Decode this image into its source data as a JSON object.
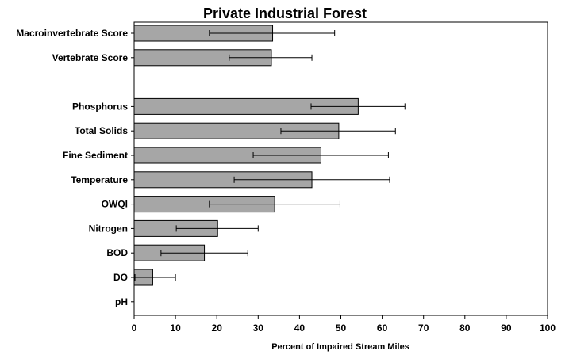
{
  "chart_data": {
    "type": "bar",
    "orientation": "horizontal",
    "title": "Private Industrial Forest",
    "xlabel": "Percent of Impaired Stream Miles",
    "ylabel": "",
    "xlim": [
      0,
      100
    ],
    "x_ticks": [
      0,
      10,
      20,
      30,
      40,
      50,
      60,
      70,
      80,
      90,
      100
    ],
    "grid": false,
    "bar_color": "#a6a6a6",
    "categories": [
      "Macroinvertebrate Score",
      "Vertebrate Score",
      "",
      "Phosphorus",
      "Total Solids",
      "Fine Sediment",
      "Temperature",
      "OWQI",
      "Nitrogen",
      "BOD",
      "DO",
      "pH"
    ],
    "values": [
      33.5,
      33.2,
      null,
      54.2,
      49.5,
      45.2,
      43.0,
      34.0,
      20.2,
      17.0,
      4.5,
      0
    ],
    "error_low": [
      18.2,
      23.0,
      null,
      42.8,
      35.5,
      28.8,
      24.2,
      18.2,
      10.2,
      6.5,
      0.2,
      null
    ],
    "error_high": [
      48.5,
      43.0,
      null,
      65.5,
      63.2,
      61.5,
      61.8,
      49.8,
      30.0,
      27.5,
      10.0,
      null
    ]
  }
}
